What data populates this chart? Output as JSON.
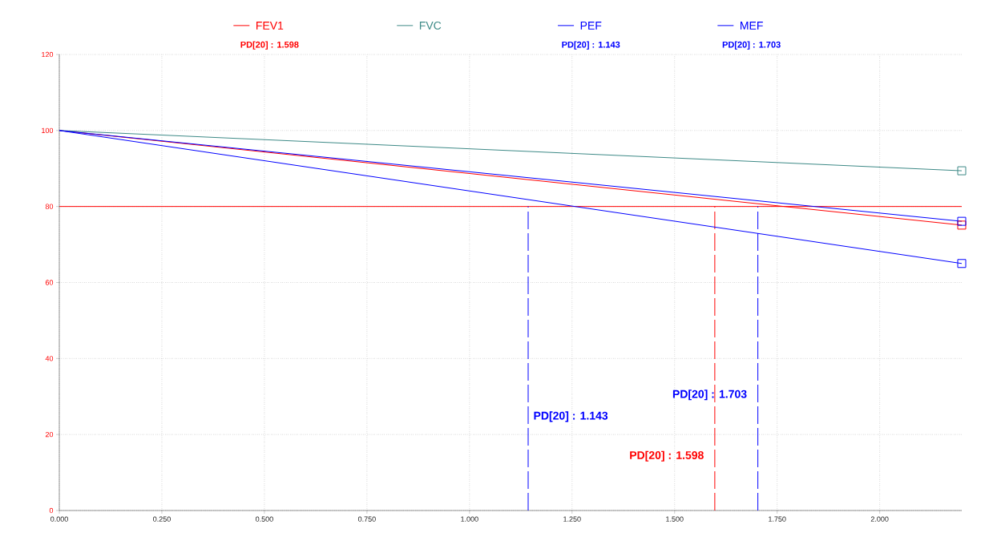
{
  "chart_data": {
    "type": "line",
    "x": [
      0,
      2.2
    ],
    "series": [
      {
        "name": "FEV1",
        "color": "#ff0000",
        "values": [
          100,
          75.1
        ]
      },
      {
        "name": "FVC",
        "color": "#3d8a87",
        "values": [
          100,
          89.4
        ]
      },
      {
        "name": "PEF",
        "color": "#0000ff",
        "values": [
          100,
          65.0
        ]
      },
      {
        "name": "MEF",
        "color": "#0000ff",
        "values": [
          100,
          76.1
        ]
      }
    ],
    "xlim": [
      0,
      2.2
    ],
    "ylim": [
      0,
      120
    ],
    "xticks": [
      {
        "value": 0,
        "label": "0.000"
      },
      {
        "value": 0.25,
        "label": "0.250"
      },
      {
        "value": 0.5,
        "label": "0.500"
      },
      {
        "value": 0.75,
        "label": "0.750"
      },
      {
        "value": 1,
        "label": "1.000"
      },
      {
        "value": 1.25,
        "label": "1.250"
      },
      {
        "value": 1.5,
        "label": "1.500"
      },
      {
        "value": 1.75,
        "label": "1.750"
      },
      {
        "value": 2,
        "label": "2.000"
      }
    ],
    "yticks": [
      0,
      20,
      40,
      60,
      80,
      100,
      120
    ],
    "grid": true,
    "legend": "top",
    "marker": "square",
    "line_style": "solid",
    "ref_lines": [
      {
        "axis": "y",
        "value": 80,
        "color": "#ff0000",
        "line_style": "solid"
      },
      {
        "axis": "x",
        "value": 1.143,
        "color": "#0000ff",
        "line_style": "dashed"
      },
      {
        "axis": "x",
        "value": 1.598,
        "color": "#ff0000",
        "line_style": "dashed"
      },
      {
        "axis": "x",
        "value": 1.703,
        "color": "#0000ff",
        "line_style": "dashed"
      }
    ],
    "annotations": [
      "PD[20] : 1.598",
      "PD[20] : 1.143",
      "PD[20] : 1.703",
      {
        "text": "PD[20] : 1.143",
        "x": 1.143,
        "y": 24.7
      },
      {
        "text": "PD[20] : 1.703",
        "x": 1.703,
        "y": 30.4
      },
      {
        "text": "PD[20] : 1.598",
        "x": 1.598,
        "y": 14.3
      }
    ]
  }
}
